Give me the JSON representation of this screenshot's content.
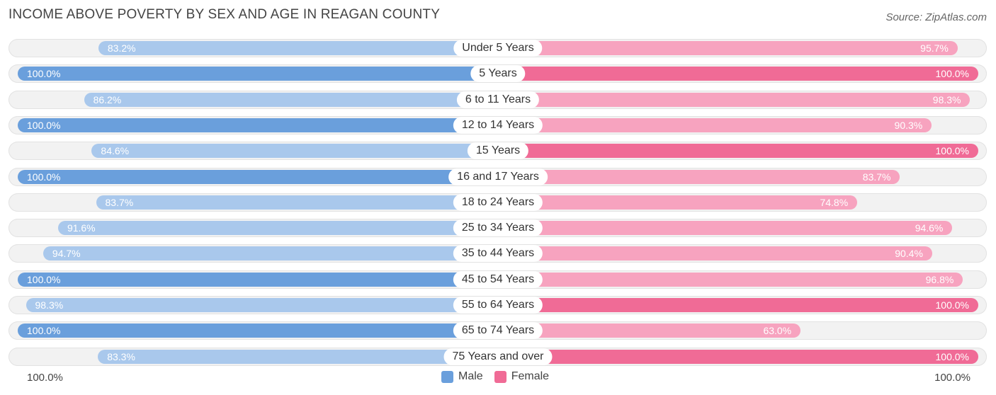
{
  "chart_data": {
    "type": "bar",
    "orientation": "horizontal-diverging",
    "title": "INCOME ABOVE POVERTY BY SEX AND AGE IN REAGAN COUNTY",
    "source": "Source: ZipAtlas.com",
    "categories": [
      "Under 5 Years",
      "5 Years",
      "6 to 11 Years",
      "12 to 14 Years",
      "15 Years",
      "16 and 17 Years",
      "18 to 24 Years",
      "25 to 34 Years",
      "35 to 44 Years",
      "45 to 54 Years",
      "55 to 64 Years",
      "65 to 74 Years",
      "75 Years and over"
    ],
    "series": [
      {
        "name": "Male",
        "values": [
          83.2,
          100.0,
          86.2,
          100.0,
          84.6,
          100.0,
          83.7,
          91.6,
          94.7,
          100.0,
          98.3,
          100.0,
          83.3
        ],
        "labels": [
          "83.2%",
          "100.0%",
          "86.2%",
          "100.0%",
          "84.6%",
          "100.0%",
          "83.7%",
          "91.6%",
          "94.7%",
          "100.0%",
          "98.3%",
          "100.0%",
          "83.3%"
        ]
      },
      {
        "name": "Female",
        "values": [
          95.7,
          100.0,
          98.3,
          90.3,
          100.0,
          83.7,
          74.8,
          94.6,
          90.4,
          96.8,
          100.0,
          63.0,
          100.0
        ],
        "labels": [
          "95.7%",
          "100.0%",
          "98.3%",
          "90.3%",
          "100.0%",
          "83.7%",
          "74.8%",
          "94.6%",
          "90.4%",
          "96.8%",
          "100.0%",
          "63.0%",
          "100.0%"
        ]
      }
    ],
    "xlim": [
      0,
      100
    ],
    "axis_left_label": "100.0%",
    "axis_right_label": "100.0%",
    "legend": [
      {
        "label": "Male",
        "color": "#6a9fdc"
      },
      {
        "label": "Female",
        "color": "#f06b96"
      }
    ],
    "colors": {
      "male_full": "#6a9fdc",
      "male_light": "#a9c8ec",
      "female_full": "#f06b96",
      "female_light": "#f7a3bf"
    }
  }
}
